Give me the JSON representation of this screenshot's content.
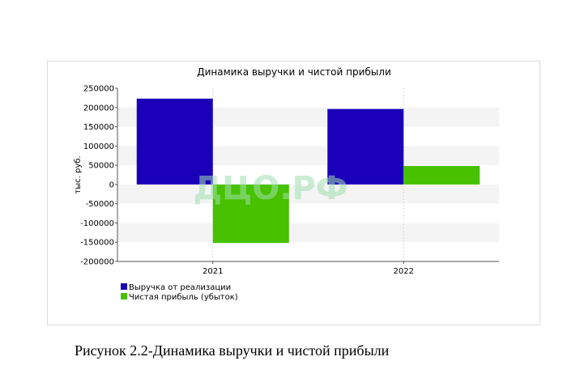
{
  "chart_data": {
    "type": "bar",
    "title": "Динамика выручки и чистой прибыли",
    "ylabel": "тыс. руб.",
    "xlabel": "",
    "categories": [
      "2021",
      "2022"
    ],
    "series": [
      {
        "name": "Выручка от реализации",
        "values": [
          223000,
          196000
        ],
        "color": "#1a00b8"
      },
      {
        "name": "Чистая прибыль (убыток)",
        "values": [
          -152000,
          48000
        ],
        "color": "#47c100"
      }
    ],
    "ylim": [
      -200000,
      250000
    ],
    "yticks": [
      "250000",
      "200000",
      "150000",
      "100000",
      "50000",
      "0",
      "-50000",
      "-100000",
      "-150000",
      "-200000"
    ],
    "grid": true,
    "legend_position": "bottom-left",
    "watermark": "ДЦО.РФ"
  },
  "caption": "Рисунок 2.2-Динамика выручки и чистой прибыли"
}
